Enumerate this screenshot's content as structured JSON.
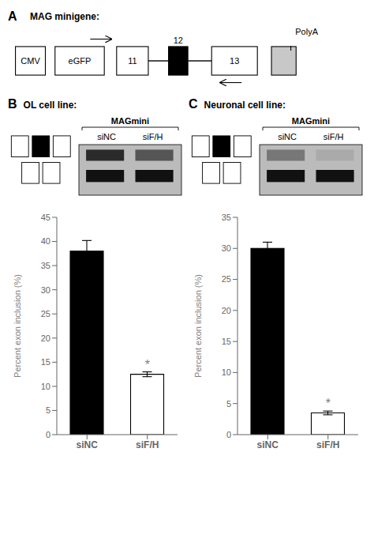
{
  "chart_data": [
    {
      "type": "diagram",
      "title": "MAG minigene:",
      "annotations": [
        "A",
        "CMV",
        "eGFP",
        "11",
        "12",
        "13",
        "PolyA"
      ]
    },
    {
      "type": "bar",
      "title": "OL cell line:",
      "categories": [
        "siNC",
        "siF/H"
      ],
      "values": [
        38.0,
        12.5
      ],
      "errors": [
        2.2,
        0.5
      ],
      "colors": [
        "black",
        "white"
      ],
      "ylabel": "Percent exon inclusion (%)",
      "ylim": [
        0,
        45
      ],
      "yticks": [
        0,
        5,
        10,
        15,
        20,
        25,
        30,
        35,
        40,
        45
      ],
      "grid": false,
      "annotations": [
        "B",
        "MAGmini",
        "siNC",
        "siF/H",
        {
          "text": "*",
          "category": "siF/H"
        }
      ]
    },
    {
      "type": "bar",
      "title": "Neuronal cell line:",
      "categories": [
        "siNC",
        "siF/H"
      ],
      "values": [
        30.0,
        3.5
      ],
      "errors": [
        1.0,
        0.3
      ],
      "colors": [
        "black",
        "white"
      ],
      "ylabel": "Percent exon inclusion (%)",
      "ylim": [
        0,
        35
      ],
      "yticks": [
        0,
        5,
        10,
        15,
        20,
        25,
        30,
        35
      ],
      "grid": false,
      "annotations": [
        "C",
        "MAGmini",
        "siNC",
        "siF/H",
        {
          "text": "*",
          "category": "siF/H"
        }
      ]
    }
  ]
}
